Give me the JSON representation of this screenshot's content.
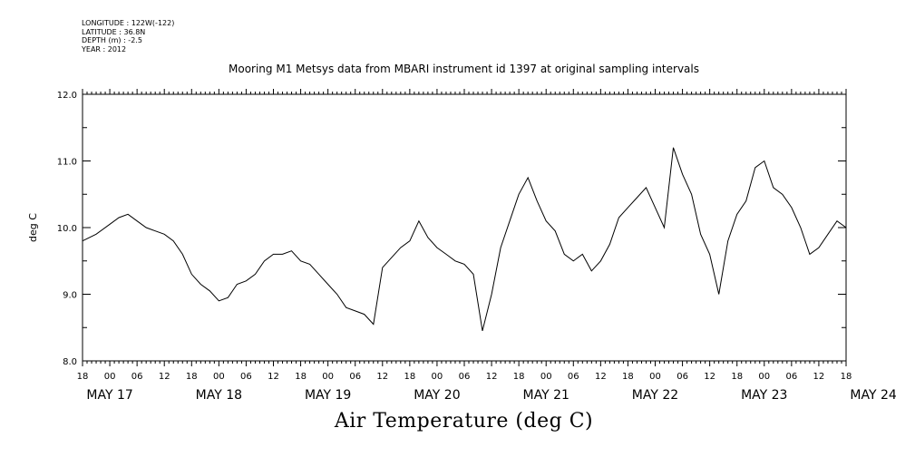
{
  "meta_lines": [
    "LONGITUDE : 122W(-122)",
    "LATITUDE : 36.8N",
    "DEPTH (m) : -2.5",
    "YEAR : 2012"
  ],
  "chart_data": {
    "type": "line",
    "title": "Mooring M1 Metsys data from MBARI instrument id 1397 at original sampling intervals",
    "xlabel": "Air Temperature (deg C)",
    "ylabel": "deg C",
    "ylim": [
      8.0,
      12.0
    ],
    "y_ticks": [
      "8.0",
      "9.0",
      "10.0",
      "11.0",
      "12.0"
    ],
    "x_hour_labels": [
      "18",
      "00",
      "06",
      "12",
      "18",
      "00",
      "06",
      "12",
      "18",
      "00",
      "06",
      "12",
      "18",
      "00",
      "06",
      "12",
      "18",
      "00",
      "06",
      "12",
      "18",
      "00",
      "06",
      "12",
      "18",
      "00",
      "06",
      "12",
      "18"
    ],
    "x_day_labels": [
      "MAY 17",
      "MAY 18",
      "MAY 19",
      "MAY 20",
      "MAY 21",
      "MAY 22",
      "MAY 23",
      "MAY 24"
    ],
    "x_unit": "hours since MAY 17 18:00",
    "grid": false,
    "series": [
      {
        "color": "#000000",
        "x": [
          0,
          3,
          6,
          8,
          10,
          12,
          14,
          16,
          18,
          20,
          22,
          24,
          26,
          28,
          30,
          32,
          34,
          36,
          38,
          40,
          42,
          44,
          46,
          48,
          50,
          52,
          54,
          56,
          58,
          60,
          62,
          64,
          66,
          68,
          70,
          72,
          74,
          76,
          78,
          80,
          82,
          84,
          86,
          88,
          90,
          92,
          94,
          96,
          98,
          100,
          102,
          104,
          106,
          108,
          110,
          112,
          114,
          116,
          118,
          120,
          122,
          124,
          126,
          128,
          130,
          132,
          134,
          136,
          138,
          140,
          142,
          144,
          146,
          148,
          150,
          152,
          154,
          156,
          158,
          160,
          162,
          164,
          166,
          168
        ],
        "y": [
          9.8,
          9.9,
          10.05,
          10.15,
          10.2,
          10.1,
          10.0,
          9.95,
          9.9,
          9.8,
          9.6,
          9.3,
          9.15,
          9.05,
          8.9,
          8.95,
          9.15,
          9.2,
          9.3,
          9.5,
          9.6,
          9.6,
          9.65,
          9.5,
          9.45,
          9.3,
          9.15,
          9.0,
          8.8,
          8.75,
          8.7,
          8.55,
          9.4,
          9.55,
          9.7,
          9.8,
          10.1,
          9.85,
          9.7,
          9.6,
          9.5,
          9.45,
          9.3,
          8.45,
          9.0,
          9.7,
          10.1,
          10.5,
          10.75,
          10.4,
          10.1,
          9.95,
          9.6,
          9.5,
          9.6,
          9.35,
          9.5,
          9.75,
          10.15,
          10.3,
          10.45,
          10.6,
          10.3,
          10.0,
          11.2,
          10.8,
          10.5,
          9.9,
          9.6,
          9.0,
          9.8,
          10.2,
          10.4,
          10.9,
          11.0,
          10.6,
          10.5,
          10.3,
          10.0,
          9.6,
          9.7,
          9.9,
          10.1,
          10.0
        ]
      }
    ]
  }
}
